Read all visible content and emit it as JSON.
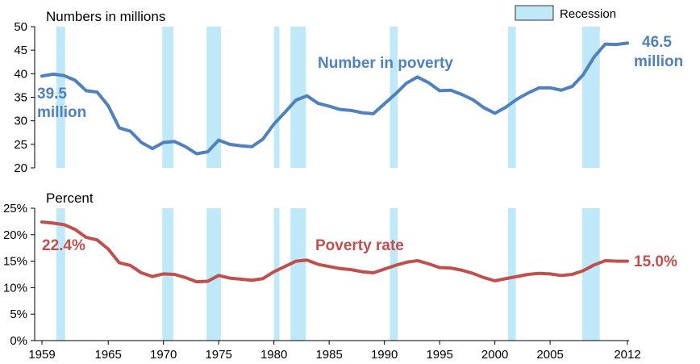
{
  "chart_data": {
    "type": "line",
    "x_tick_labels": [
      "1959",
      "1965",
      "1970",
      "1975",
      "1980",
      "1985",
      "1990",
      "1995",
      "2000",
      "2005",
      "2012"
    ],
    "legend": {
      "label": "Recession",
      "color": "#BFE8F8",
      "placement": "top-right"
    },
    "recessions": [
      [
        1960.3,
        1961.1
      ],
      [
        1969.9,
        1970.9
      ],
      [
        1973.9,
        1975.2
      ],
      [
        1980.0,
        1980.5
      ],
      [
        1981.5,
        1982.9
      ],
      [
        1990.5,
        1991.2
      ],
      [
        2001.2,
        2001.9
      ],
      [
        2007.9,
        2009.5
      ]
    ],
    "panels": [
      {
        "name": "number",
        "ylabel": "Numbers in millions",
        "ylim": [
          20,
          50
        ],
        "yticks": [
          20,
          25,
          30,
          35,
          40,
          45,
          50
        ],
        "ytick_labels": [
          "20",
          "25",
          "30",
          "35",
          "40",
          "45",
          "50"
        ],
        "color": "#4F81BD",
        "series": {
          "name": "Number in poverty",
          "x": [
            1959,
            1960,
            1961,
            1962,
            1963,
            1964,
            1965,
            1966,
            1967,
            1968,
            1969,
            1970,
            1971,
            1972,
            1973,
            1974,
            1975,
            1976,
            1977,
            1978,
            1979,
            1980,
            1981,
            1982,
            1983,
            1984,
            1985,
            1986,
            1987,
            1988,
            1989,
            1990,
            1991,
            1992,
            1993,
            1994,
            1995,
            1996,
            1997,
            1998,
            1999,
            2000,
            2001,
            2002,
            2003,
            2004,
            2005,
            2006,
            2007,
            2008,
            2009,
            2010,
            2011,
            2012
          ],
          "values": [
            39.5,
            39.9,
            39.6,
            38.6,
            36.4,
            36.1,
            33.2,
            28.5,
            27.8,
            25.4,
            24.1,
            25.4,
            25.6,
            24.5,
            23.0,
            23.4,
            25.9,
            25.0,
            24.7,
            24.5,
            26.1,
            29.3,
            31.8,
            34.4,
            35.3,
            33.7,
            33.1,
            32.4,
            32.2,
            31.7,
            31.5,
            33.6,
            35.7,
            38.0,
            39.3,
            38.1,
            36.4,
            36.5,
            35.6,
            34.5,
            32.8,
            31.6,
            32.9,
            34.6,
            35.9,
            37.0,
            37.0,
            36.5,
            37.3,
            39.8,
            43.6,
            46.3,
            46.2,
            46.5
          ]
        },
        "labels": {
          "series": "Number in poverty",
          "start_value": "39.5",
          "start_unit": "million",
          "end_value": "46.5",
          "end_unit": "million"
        }
      },
      {
        "name": "rate",
        "ylabel": "Percent",
        "ylim": [
          0,
          25
        ],
        "yticks": [
          0,
          5,
          10,
          15,
          20,
          25
        ],
        "ytick_labels": [
          "0%",
          "5%",
          "10%",
          "15%",
          "20%",
          "25%"
        ],
        "color": "#C0504D",
        "series": {
          "name": "Poverty rate",
          "x": [
            1959,
            1960,
            1961,
            1962,
            1963,
            1964,
            1965,
            1966,
            1967,
            1968,
            1969,
            1970,
            1971,
            1972,
            1973,
            1974,
            1975,
            1976,
            1977,
            1978,
            1979,
            1980,
            1981,
            1982,
            1983,
            1984,
            1985,
            1986,
            1987,
            1988,
            1989,
            1990,
            1991,
            1992,
            1993,
            1994,
            1995,
            1996,
            1997,
            1998,
            1999,
            2000,
            2001,
            2002,
            2003,
            2004,
            2005,
            2006,
            2007,
            2008,
            2009,
            2010,
            2011,
            2012
          ],
          "values": [
            22.4,
            22.2,
            21.9,
            21.0,
            19.5,
            19.0,
            17.3,
            14.7,
            14.2,
            12.8,
            12.1,
            12.6,
            12.5,
            11.9,
            11.1,
            11.2,
            12.3,
            11.8,
            11.6,
            11.4,
            11.7,
            13.0,
            14.0,
            15.0,
            15.2,
            14.4,
            14.0,
            13.6,
            13.4,
            13.0,
            12.8,
            13.5,
            14.2,
            14.8,
            15.1,
            14.5,
            13.8,
            13.7,
            13.3,
            12.7,
            11.9,
            11.3,
            11.7,
            12.1,
            12.5,
            12.7,
            12.6,
            12.3,
            12.5,
            13.2,
            14.3,
            15.1,
            15.0,
            15.0
          ]
        },
        "labels": {
          "series": "Poverty rate",
          "start_value": "22.4%",
          "end_value": "15.0%"
        }
      }
    ]
  }
}
